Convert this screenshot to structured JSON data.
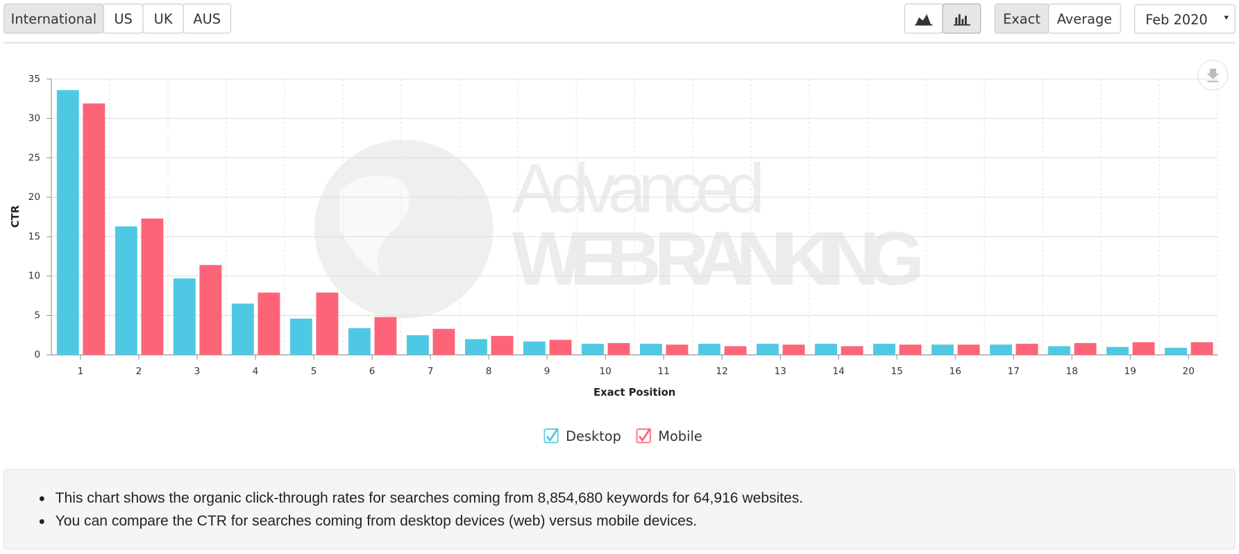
{
  "toolbar": {
    "region_tabs": [
      "International",
      "US",
      "UK",
      "AUS"
    ],
    "mode_buttons": [
      "Exact",
      "Average"
    ],
    "date": "Feb 2020"
  },
  "chart_data": {
    "type": "bar",
    "watermark": [
      "Advanced",
      "WEB RANKING"
    ],
    "xlabel": "Exact Position",
    "ylabel": "CTR",
    "categories": [
      "1",
      "2",
      "3",
      "4",
      "5",
      "6",
      "7",
      "8",
      "9",
      "10",
      "11",
      "12",
      "13",
      "14",
      "15",
      "16",
      "17",
      "18",
      "19",
      "20"
    ],
    "series": [
      {
        "name": "Desktop",
        "color": "#4fc9e3",
        "values": [
          33.6,
          16.3,
          9.7,
          6.5,
          4.6,
          3.4,
          2.5,
          2.0,
          1.7,
          1.4,
          1.4,
          1.4,
          1.4,
          1.4,
          1.4,
          1.3,
          1.3,
          1.1,
          1.0,
          0.9
        ]
      },
      {
        "name": "Mobile",
        "color": "#fd6478",
        "values": [
          31.9,
          17.3,
          11.4,
          7.9,
          7.9,
          4.8,
          3.3,
          2.4,
          1.9,
          1.5,
          1.3,
          1.1,
          1.3,
          1.1,
          1.3,
          1.3,
          1.4,
          1.5,
          1.6,
          1.6
        ]
      }
    ],
    "ylim": [
      0,
      35
    ],
    "yticks": [
      0,
      5,
      10,
      15,
      20,
      25,
      30,
      35
    ],
    "grid": true
  },
  "notes": [
    "This chart shows the organic click-through rates for searches coming from 8,854,680 keywords for 64,916 websites.",
    "You can compare the CTR for searches coming from desktop devices (web) versus mobile devices."
  ]
}
